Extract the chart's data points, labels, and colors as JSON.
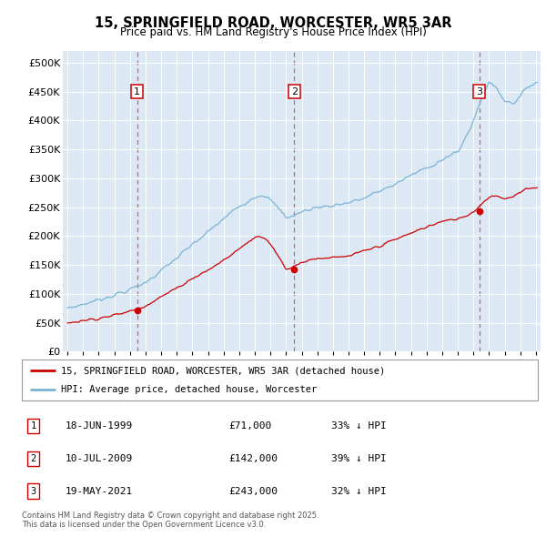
{
  "title": "15, SPRINGFIELD ROAD, WORCESTER, WR5 3AR",
  "subtitle": "Price paid vs. HM Land Registry's House Price Index (HPI)",
  "bg_color": "#dce9f5",
  "hpi_color": "#7ab3d4",
  "price_color": "#cc0000",
  "vline_color": "#e84040",
  "sale_years": [
    1999.46,
    2009.53,
    2021.38
  ],
  "sale_prices": [
    71000,
    142000,
    243000
  ],
  "sale_labels": [
    "1",
    "2",
    "3"
  ],
  "legend_entries": [
    "15, SPRINGFIELD ROAD, WORCESTER, WR5 3AR (detached house)",
    "HPI: Average price, detached house, Worcester"
  ],
  "table_rows": [
    {
      "num": "1",
      "date": "18-JUN-1999",
      "price": "£71,000",
      "hpi": "33% ↓ HPI"
    },
    {
      "num": "2",
      "date": "10-JUL-2009",
      "price": "£142,000",
      "hpi": "39% ↓ HPI"
    },
    {
      "num": "3",
      "date": "19-MAY-2021",
      "price": "£243,000",
      "hpi": "32% ↓ HPI"
    }
  ],
  "footer": "Contains HM Land Registry data © Crown copyright and database right 2025.\nThis data is licensed under the Open Government Licence v3.0.",
  "ylim": [
    0,
    520000
  ],
  "xlim": [
    1994.7,
    2025.3
  ],
  "yticks": [
    0,
    50000,
    100000,
    150000,
    200000,
    250000,
    300000,
    350000,
    400000,
    450000,
    500000
  ],
  "ytick_labels": [
    "£0",
    "£50K",
    "£100K",
    "£150K",
    "£200K",
    "£250K",
    "£300K",
    "£350K",
    "£400K",
    "£450K",
    "£500K"
  ]
}
